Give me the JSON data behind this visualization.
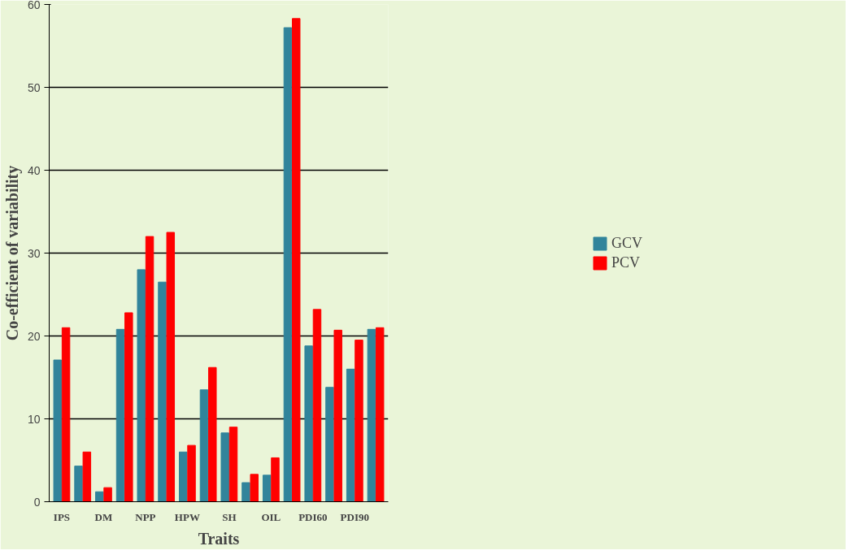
{
  "chart_data": {
    "type": "bar",
    "xlabel": "Traits",
    "ylabel": "Co-efficient of variability",
    "categories": [
      "IPS",
      null,
      "DM",
      null,
      "NPP",
      null,
      "HPW",
      null,
      "SH",
      null,
      "OIL",
      null,
      "PDI60",
      null,
      "PDI90",
      null
    ],
    "series": [
      {
        "name": "GCV",
        "color": "#31849b",
        "values": [
          17.1,
          4.3,
          1.2,
          20.8,
          28,
          26.5,
          6,
          13.5,
          8.3,
          2.3,
          3.2,
          57.2,
          18.8,
          13.8,
          16,
          20.8
        ]
      },
      {
        "name": "PCV",
        "color": "#ff0000",
        "values": [
          21,
          6,
          1.7,
          22.8,
          32,
          32.5,
          6.8,
          16.2,
          9,
          3.3,
          5.3,
          58.3,
          23.2,
          20.7,
          19.5,
          21
        ]
      }
    ],
    "ylim": [
      0,
      60
    ],
    "yticks": [
      0,
      10,
      20,
      30,
      40,
      50,
      60
    ],
    "grid": "y",
    "legend": "right"
  }
}
